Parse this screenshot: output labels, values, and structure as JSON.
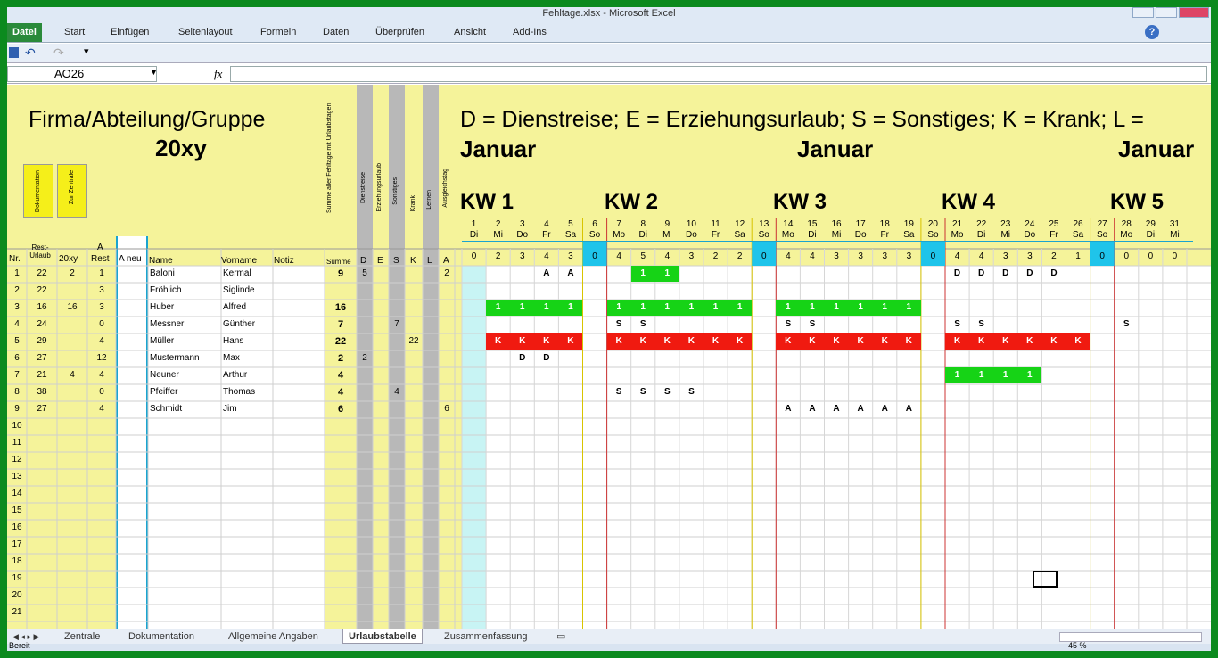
{
  "window": {
    "title": "Fehltage.xlsx  -  Microsoft Excel"
  },
  "ribbon": {
    "tabs": [
      "Datei",
      "Start",
      "Einfügen",
      "Seitenlayout",
      "Formeln",
      "Daten",
      "Überprüfen",
      "Ansicht",
      "Add-Ins"
    ]
  },
  "formula_bar": {
    "name_box": "AO26",
    "fx": "fx"
  },
  "sheet": {
    "title": "Firma/Abteilung/Gruppe",
    "year": "20xy",
    "legend": "D = Dienstreise; E = Erziehungsurlaub; S = Sonstiges; K = Krank; L =",
    "months": [
      "Januar",
      "Januar",
      "Januar"
    ],
    "kw": [
      "KW 1",
      "KW 2",
      "KW 3",
      "KW 4",
      "KW 5"
    ],
    "buttons": {
      "doc": "Dokumentation",
      "central": "Zur Zentrale"
    },
    "rotated_headers": {
      "sum_holidays": "Summe aller Fehltage mit Urlaubstagen",
      "dienstreise": "Dienstreise",
      "erziehungsurlaub": "Erziehungsurlaub",
      "sonstiges": "Sonstiges",
      "krank": "Krank",
      "lernen": "Lernen",
      "ausgleichstag": "Ausgleichstag"
    },
    "columns": {
      "nr": "Nr.",
      "rest_urlaub": "Rest-Urlaub",
      "x20": "20xy",
      "a": "A",
      "rest": "Rest",
      "a_neu": "A neu",
      "name": "Name",
      "vorname": "Vorname",
      "notiz": "Notiz",
      "summe": "Summe",
      "d": "D",
      "e": "E",
      "s": "S",
      "k": "K",
      "l": "L",
      "a2": "A"
    },
    "days": [
      "1",
      "2",
      "3",
      "4",
      "5",
      "6",
      "7",
      "8",
      "9",
      "10",
      "11",
      "12",
      "13",
      "14",
      "15",
      "16",
      "17",
      "18",
      "19",
      "20",
      "21",
      "22",
      "23",
      "24",
      "25",
      "26",
      "27",
      "28",
      "29",
      "31"
    ],
    "weekdays": [
      "Di",
      "Mi",
      "Do",
      "Fr",
      "Sa",
      "So",
      "Mo",
      "Di",
      "Mi",
      "Do",
      "Fr",
      "Sa",
      "So",
      "Mo",
      "Di",
      "Mi",
      "Do",
      "Fr",
      "Sa",
      "So",
      "Mo",
      "Di",
      "Mi",
      "Do",
      "Fr",
      "Sa",
      "So",
      "Mo",
      "Di",
      "Mi"
    ],
    "counts": [
      "0",
      "2",
      "3",
      "4",
      "3",
      "0",
      "4",
      "5",
      "4",
      "3",
      "2",
      "2",
      "0",
      "4",
      "4",
      "3",
      "3",
      "3",
      "3",
      "0",
      "4",
      "4",
      "3",
      "3",
      "2",
      "1",
      "0",
      "0",
      "0",
      "0"
    ],
    "rows": [
      {
        "nr": "1",
        "rest": "22",
        "x20": "2",
        "a": "1",
        "name": "Baloni",
        "vorname": "Kermal",
        "summe": "9",
        "d": "5",
        "e": "",
        "s": "",
        "k": "",
        "a2": "2"
      },
      {
        "nr": "2",
        "rest": "22",
        "x20": "",
        "a": "3",
        "name": "Fröhlich",
        "vorname": "Siglinde",
        "summe": "",
        "d": "",
        "e": "",
        "s": "",
        "k": "",
        "a2": ""
      },
      {
        "nr": "3",
        "rest": "16",
        "x20": "16",
        "a": "3",
        "name": "Huber",
        "vorname": "Alfred",
        "summe": "16",
        "d": "",
        "e": "",
        "s": "",
        "k": "",
        "a2": ""
      },
      {
        "nr": "4",
        "rest": "24",
        "x20": "",
        "a": "0",
        "name": "Messner",
        "vorname": "Günther",
        "summe": "7",
        "d": "",
        "e": "",
        "s": "7",
        "k": "",
        "a2": ""
      },
      {
        "nr": "5",
        "rest": "29",
        "x20": "",
        "a": "4",
        "name": "Müller",
        "vorname": "Hans",
        "summe": "22",
        "d": "",
        "e": "",
        "s": "",
        "k": "22",
        "a2": ""
      },
      {
        "nr": "6",
        "rest": "27",
        "x20": "",
        "a": "12",
        "name": "Mustermann",
        "vorname": "Max",
        "summe": "2",
        "d": "2",
        "e": "",
        "s": "",
        "k": "",
        "a2": ""
      },
      {
        "nr": "7",
        "rest": "21",
        "x20": "4",
        "a": "4",
        "name": "Neuner",
        "vorname": "Arthur",
        "summe": "4",
        "d": "",
        "e": "",
        "s": "",
        "k": "",
        "a2": ""
      },
      {
        "nr": "8",
        "rest": "38",
        "x20": "",
        "a": "0",
        "name": "Pfeiffer",
        "vorname": "Thomas",
        "summe": "4",
        "d": "",
        "e": "",
        "s": "4",
        "k": "",
        "a2": ""
      },
      {
        "nr": "9",
        "rest": "27",
        "x20": "",
        "a": "4",
        "name": "Schmidt",
        "vorname": "Jim",
        "summe": "6",
        "d": "",
        "e": "",
        "s": "",
        "k": "",
        "a2": "6"
      },
      {
        "nr": "10"
      },
      {
        "nr": "11"
      },
      {
        "nr": "12"
      },
      {
        "nr": "13"
      },
      {
        "nr": "14"
      },
      {
        "nr": "15"
      },
      {
        "nr": "16"
      },
      {
        "nr": "17"
      },
      {
        "nr": "18"
      },
      {
        "nr": "19"
      },
      {
        "nr": "20"
      },
      {
        "nr": "21"
      }
    ],
    "entries": [
      {
        "row": 0,
        "day": 3,
        "v": "A"
      },
      {
        "row": 0,
        "day": 4,
        "v": "A"
      },
      {
        "row": 3,
        "day": 6,
        "v": "S"
      },
      {
        "row": 3,
        "day": 7,
        "v": "S"
      },
      {
        "row": 3,
        "day": 13,
        "v": "S"
      },
      {
        "row": 3,
        "day": 14,
        "v": "S"
      },
      {
        "row": 3,
        "day": 20,
        "v": "S"
      },
      {
        "row": 3,
        "day": 21,
        "v": "S"
      },
      {
        "row": 3,
        "day": 27,
        "v": "S"
      },
      {
        "row": 5,
        "day": 2,
        "v": "D"
      },
      {
        "row": 5,
        "day": 3,
        "v": "D"
      },
      {
        "row": 7,
        "day": 6,
        "v": "S"
      },
      {
        "row": 7,
        "day": 7,
        "v": "S"
      },
      {
        "row": 7,
        "day": 8,
        "v": "S"
      },
      {
        "row": 7,
        "day": 9,
        "v": "S"
      },
      {
        "row": 8,
        "day": 13,
        "v": "A"
      },
      {
        "row": 8,
        "day": 14,
        "v": "A"
      },
      {
        "row": 8,
        "day": 15,
        "v": "A"
      },
      {
        "row": 8,
        "day": 16,
        "v": "A"
      },
      {
        "row": 8,
        "day": 17,
        "v": "A"
      },
      {
        "row": 8,
        "day": 18,
        "v": "A"
      },
      {
        "row": 0,
        "day": 20,
        "v": "D"
      },
      {
        "row": 0,
        "day": 21,
        "v": "D"
      },
      {
        "row": 0,
        "day": 22,
        "v": "D"
      },
      {
        "row": 0,
        "day": 23,
        "v": "D"
      },
      {
        "row": 0,
        "day": 24,
        "v": "D"
      }
    ],
    "bars": [
      {
        "row": 0,
        "from": 7,
        "to": 8,
        "v": "1",
        "color": "#16d316"
      },
      {
        "row": 2,
        "from": 1,
        "to": 4,
        "v": "1",
        "color": "#16d316"
      },
      {
        "row": 2,
        "from": 6,
        "to": 11,
        "v": "1",
        "color": "#16d316"
      },
      {
        "row": 2,
        "from": 13,
        "to": 18,
        "v": "1",
        "color": "#16d316"
      },
      {
        "row": 4,
        "from": 1,
        "to": 4,
        "v": "K",
        "color": "#f01a10"
      },
      {
        "row": 4,
        "from": 6,
        "to": 11,
        "v": "K",
        "color": "#f01a10"
      },
      {
        "row": 4,
        "from": 13,
        "to": 18,
        "v": "K",
        "color": "#f01a10"
      },
      {
        "row": 4,
        "from": 20,
        "to": 25,
        "v": "K",
        "color": "#f01a10"
      },
      {
        "row": 6,
        "from": 20,
        "to": 23,
        "v": "1",
        "color": "#16d316"
      }
    ]
  },
  "sheet_tabs": [
    "Zentrale",
    "Dokumentation",
    "Allgemeine Angaben",
    "Urlaubstabelle",
    "Zusammenfassung"
  ],
  "status": {
    "ready": "Bereit",
    "zoom": "45 %"
  }
}
